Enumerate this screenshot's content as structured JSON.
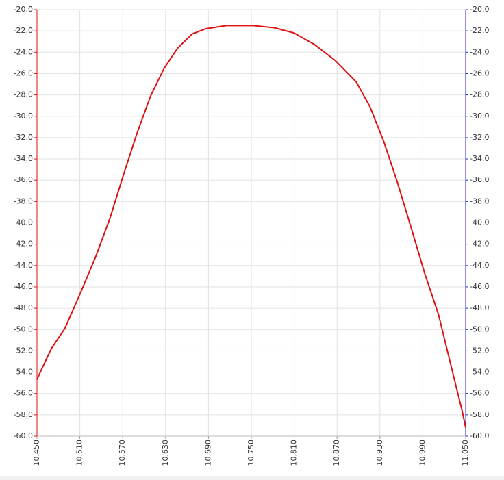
{
  "chart_data": {
    "type": "line",
    "x": [
      10.45,
      10.456,
      10.47,
      10.489,
      10.51,
      10.532,
      10.552,
      10.571,
      10.59,
      10.609,
      10.628,
      10.647,
      10.667,
      10.686,
      10.715,
      10.753,
      10.782,
      10.81,
      10.839,
      10.868,
      10.897,
      10.916,
      10.935,
      10.954,
      10.973,
      10.993,
      11.012,
      11.031,
      11.045,
      11.05
    ],
    "series": [
      {
        "color": "#e01010",
        "values": [
          -54.7,
          -53.8,
          -51.8,
          -49.9,
          -46.7,
          -43.2,
          -39.6,
          -35.5,
          -31.6,
          -28.1,
          -25.5,
          -23.6,
          -22.3,
          -21.8,
          -21.5,
          -21.5,
          -21.7,
          -22.2,
          -23.3,
          -24.8,
          -26.8,
          -29.1,
          -32.3,
          -36.1,
          -40.3,
          -44.8,
          -48.6,
          -53.8,
          -57.6,
          -59.2
        ]
      }
    ],
    "xlim": [
      10.45,
      11.05
    ],
    "xticks": [
      {
        "value": 10.45,
        "label": "10.450"
      },
      {
        "value": 10.51,
        "label": "10.510"
      },
      {
        "value": 10.57,
        "label": "10.570"
      },
      {
        "value": 10.63,
        "label": "10.630"
      },
      {
        "value": 10.69,
        "label": "10.690"
      },
      {
        "value": 10.75,
        "label": "10.750"
      },
      {
        "value": 10.81,
        "label": "10.810"
      },
      {
        "value": 10.87,
        "label": "10.870"
      },
      {
        "value": 10.93,
        "label": "10.930"
      },
      {
        "value": 10.99,
        "label": "10.990"
      },
      {
        "value": 11.05,
        "label": "11.050"
      }
    ],
    "ylim": [
      -60,
      -20
    ],
    "yticks": [
      {
        "value": -20,
        "label": "-20.0"
      },
      {
        "value": -22,
        "label": "-22.0"
      },
      {
        "value": -24,
        "label": "-24.0"
      },
      {
        "value": -26,
        "label": "-26.0"
      },
      {
        "value": -28,
        "label": "-28.0"
      },
      {
        "value": -30,
        "label": "-30.0"
      },
      {
        "value": -32,
        "label": "-32.0"
      },
      {
        "value": -34,
        "label": "-34.0"
      },
      {
        "value": -36,
        "label": "-36.0"
      },
      {
        "value": -38,
        "label": "-38.0"
      },
      {
        "value": -40,
        "label": "-40.0"
      },
      {
        "value": -42,
        "label": "-42.0"
      },
      {
        "value": -44,
        "label": "-44.0"
      },
      {
        "value": -46,
        "label": "-46.0"
      },
      {
        "value": -48,
        "label": "-48.0"
      },
      {
        "value": -50,
        "label": "-50.0"
      },
      {
        "value": -52,
        "label": "-52.0"
      },
      {
        "value": -54,
        "label": "-54.0"
      },
      {
        "value": -56,
        "label": "-56.0"
      },
      {
        "value": -58,
        "label": "-58.0"
      },
      {
        "value": -60,
        "label": "-60.0"
      }
    ],
    "y2lim": [
      -60,
      -20
    ],
    "y2ticks": [
      {
        "value": -20,
        "label": "-20.0"
      },
      {
        "value": -22,
        "label": "-22.0"
      },
      {
        "value": -24,
        "label": "-24.0"
      },
      {
        "value": -26,
        "label": "-26.0"
      },
      {
        "value": -28,
        "label": "-28.0"
      },
      {
        "value": -30,
        "label": "-30.0"
      },
      {
        "value": -32,
        "label": "-32.0"
      },
      {
        "value": -34,
        "label": "-34.0"
      },
      {
        "value": -36,
        "label": "-36.0"
      },
      {
        "value": -38,
        "label": "-38.0"
      },
      {
        "value": -40,
        "label": "-40.0"
      },
      {
        "value": -42,
        "label": "-42.0"
      },
      {
        "value": -44,
        "label": "-44.0"
      },
      {
        "value": -46,
        "label": "-46.0"
      },
      {
        "value": -48,
        "label": "-48.0"
      },
      {
        "value": -50,
        "label": "-50.0"
      },
      {
        "value": -52,
        "label": "-52.0"
      },
      {
        "value": -54,
        "label": "-54.0"
      },
      {
        "value": -56,
        "label": "-56.0"
      },
      {
        "value": -58,
        "label": "-58.0"
      },
      {
        "value": -60,
        "label": "-60.0"
      }
    ],
    "grid": true,
    "y_axis_color": "#e01010",
    "y2_axis_color": "#2020e0"
  }
}
